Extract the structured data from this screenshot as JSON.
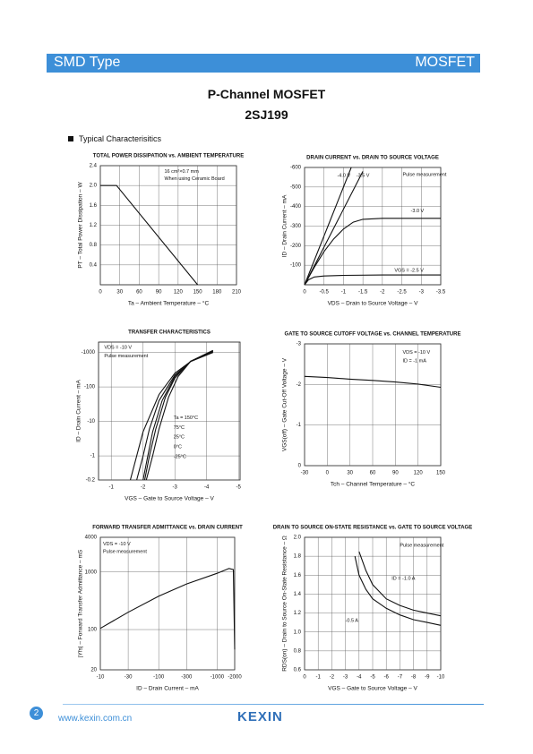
{
  "header": {
    "left": "SMD Type",
    "right": "MOSFET"
  },
  "title": {
    "line1": "P-Channel MOSFET",
    "line2": "2SJ199"
  },
  "section": "Typical Characterisitics",
  "footer": {
    "page": "2",
    "url": "www.kexin.com.cn",
    "logo": "KEXIN"
  },
  "chart_data": [
    {
      "type": "line",
      "title": "TOTAL POWER DISSIPATION vs. AMBIENT TEMPERATURE",
      "xlabel": "Ta – Ambient Temperature – °C",
      "ylabel": "PT – Total Power Dissipation – W",
      "annotations": [
        "16 cm²×0.7 mm",
        "When using Ceramic Board"
      ],
      "xlim": [
        0,
        210
      ],
      "ylim": [
        0,
        2.4
      ],
      "xticks": [
        0,
        30,
        60,
        90,
        120,
        150,
        180,
        210
      ],
      "yticks": [
        0.4,
        0.8,
        1.2,
        1.6,
        {
          "value": 2,
          "label": "2.0"
        },
        2.4
      ],
      "grid": true,
      "color": "#111",
      "series": [
        {
          "x": [
            0,
            25,
            150
          ],
          "values": [
            2,
            2,
            0
          ]
        }
      ]
    },
    {
      "type": "line",
      "title": "DRAIN CURRENT vs. DRAIN TO SOURCE VOLTAGE",
      "xlabel": "VDS – Drain to Source Voltage – V",
      "ylabel": "ID – Drain Current – mA",
      "annotations": [
        "Pulse measurement"
      ],
      "xlim": [
        0,
        -3.5
      ],
      "ylim": [
        0,
        -600
      ],
      "xticks": [
        0,
        -0.5,
        -1,
        -1.5,
        -2,
        -2.5,
        -3,
        -3.5
      ],
      "yticks": [
        -100,
        -200,
        -300,
        -400,
        -500,
        -600
      ],
      "grid": true,
      "color": "#111",
      "series": [
        {
          "name": "-4.0 V",
          "x": [
            0,
            -0.6,
            -1.2
          ],
          "values": [
            0,
            -300,
            -600
          ]
        },
        {
          "name": "-3.5 V",
          "x": [
            0,
            -0.75,
            -1.5
          ],
          "values": [
            0,
            -290,
            -580
          ]
        },
        {
          "name": "-3.0 V",
          "x": [
            0,
            -0.25,
            -0.5,
            -0.75,
            -1,
            -1.25,
            -1.5,
            -2,
            -2.5,
            -3,
            -3.5
          ],
          "values": [
            0,
            -90,
            -170,
            -235,
            -285,
            -320,
            -335,
            -340,
            -340,
            -340,
            -340
          ]
        },
        {
          "name": "VGS = -2.5 V",
          "x": [
            0,
            -0.1,
            -0.25,
            -0.5,
            -1,
            -2,
            -3.5
          ],
          "values": [
            0,
            -25,
            -40,
            -45,
            -48,
            -50,
            -50
          ]
        }
      ]
    },
    {
      "type": "line",
      "title": "TRANSFER CHARACTERISTICS",
      "xlabel": "VGS – Gate to Source Voltage – V",
      "ylabel": "ID – Drain Current – mA",
      "annotations": [
        "VDS = -10 V",
        "Pulse measurement"
      ],
      "xlim": [
        -0.6,
        -5.05
      ],
      "ylim": [
        -0.2,
        -2000
      ],
      "yscale": "log",
      "xticks": [
        -1,
        -2,
        -3,
        -4,
        -5
      ],
      "yticks": [
        -0.2,
        -1,
        -10,
        -100,
        -1000
      ],
      "grid": true,
      "color": "#111",
      "series": [
        {
          "name": "Ta = 150°C",
          "x": [
            -1.6,
            -1.8,
            -2,
            -2.5,
            -3,
            -3.5,
            -4.2
          ],
          "values": [
            -0.2,
            -1,
            -5,
            -60,
            -250,
            -550,
            -1000
          ]
        },
        {
          "name": "75°C",
          "x": [
            -1.8,
            -2,
            -2.2,
            -2.5,
            -3,
            -3.5,
            -4.2
          ],
          "values": [
            -0.2,
            -1,
            -6,
            -40,
            -220,
            -550,
            -1050
          ]
        },
        {
          "name": "25°C",
          "x": [
            -2,
            -2.15,
            -2.3,
            -2.6,
            -3,
            -3.5,
            -4.2
          ],
          "values": [
            -0.2,
            -1,
            -5,
            -40,
            -200,
            -560,
            -1100
          ]
        },
        {
          "name": "0°C",
          "x": [
            -2.05,
            -2.2,
            -2.4,
            -2.7,
            -3,
            -3.5,
            -4.2
          ],
          "values": [
            -0.2,
            -1,
            -6,
            -50,
            -180,
            -560,
            -1100
          ]
        },
        {
          "name": "-25°C",
          "x": [
            -2.1,
            -2.3,
            -2.5,
            -2.8,
            -3.1,
            -3.5,
            -4.2
          ],
          "values": [
            -0.2,
            -1,
            -6,
            -50,
            -200,
            -560,
            -1150
          ]
        }
      ]
    },
    {
      "type": "line",
      "title": "GATE TO SOURCE CUTOFF VOLTAGE vs. CHANNEL TEMPERATURE",
      "xlabel": "Tch – Channel Temperature – °C",
      "ylabel": "VGS(off) – Gate Cut-Off Voltage – V",
      "annotations": [
        "VDS = -10 V",
        "ID = -1 mA"
      ],
      "xlim": [
        -30,
        150
      ],
      "ylim": [
        0,
        -3
      ],
      "xticks": [
        -30,
        0,
        30,
        60,
        90,
        120,
        150
      ],
      "yticks": [
        0,
        -1,
        -2,
        -3
      ],
      "grid": true,
      "color": "#111",
      "series": [
        {
          "x": [
            -30,
            0,
            30,
            60,
            90,
            120,
            150
          ],
          "values": [
            -2.2,
            -2.17,
            -2.13,
            -2.1,
            -2.06,
            -2.01,
            -1.93
          ]
        }
      ]
    },
    {
      "type": "line",
      "title": "FORWARD TRANSFER ADMITTANCE vs. DRAIN CURRENT",
      "xlabel": "ID – Drain Current – mA",
      "ylabel": "|Yfs| – Forward Transfer Admittance – mS",
      "annotations": [
        "VDS = -10 V",
        "Pulse measurement"
      ],
      "xlim": [
        -10,
        -2000
      ],
      "ylim": [
        20,
        4000
      ],
      "xscale": "log",
      "yscale": "log",
      "xticks": [
        -10,
        -30,
        -100,
        -300,
        -1000,
        -2000
      ],
      "yticks": [
        20,
        100,
        1000,
        4000
      ],
      "grid": true,
      "color": "#111",
      "series": [
        {
          "x": [
            -10,
            -30,
            -100,
            -300,
            -1000,
            -1600,
            -1900,
            -2000
          ],
          "values": [
            105,
            200,
            380,
            620,
            950,
            1150,
            1100,
            45
          ]
        }
      ]
    },
    {
      "type": "line",
      "title": "DRAIN TO SOURCE ON-STATE RESISTANCE vs. GATE TO SOURCE VOLTAGE",
      "xlabel": "VGS – Gate to Source Voltage – V",
      "ylabel": "RDS(on) – Drain to Source On-State Resistance – Ω",
      "annotations": [
        "Pulse measurement"
      ],
      "xlim": [
        0,
        -10
      ],
      "ylim": [
        0.6,
        2
      ],
      "xticks": [
        0,
        -1,
        -2,
        -3,
        -4,
        -5,
        -6,
        -7,
        -8,
        -9,
        -10
      ],
      "yticks": [
        0.6,
        0.8,
        {
          "value": 1,
          "label": "1.0"
        },
        1.2,
        1.4,
        1.6,
        1.8,
        {
          "value": 2,
          "label": "2.0"
        }
      ],
      "grid": true,
      "color": "#111",
      "series": [
        {
          "name": "ID = -1.0 A",
          "x": [
            -4,
            -4.5,
            -5,
            -6,
            -7,
            -8,
            -9,
            -10
          ],
          "values": [
            1.85,
            1.65,
            1.5,
            1.35,
            1.28,
            1.23,
            1.2,
            1.17
          ]
        },
        {
          "name": "-0.5 A",
          "x": [
            -3.7,
            -4,
            -4.5,
            -5,
            -6,
            -7,
            -8,
            -9,
            -10
          ],
          "values": [
            1.8,
            1.6,
            1.45,
            1.35,
            1.25,
            1.18,
            1.13,
            1.1,
            1.07
          ]
        }
      ]
    }
  ]
}
